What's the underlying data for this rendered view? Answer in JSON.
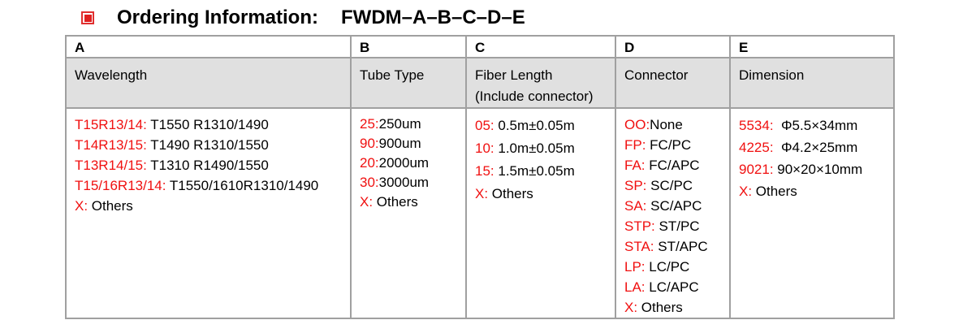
{
  "title": {
    "label": "Ordering Information:",
    "code": "FWDM–A–B–C–D–E",
    "icon": "red-square-bullet-icon"
  },
  "colors": {
    "code": "#f01010",
    "header_bg": "#e0e0e0",
    "border": "#a0a0a0"
  },
  "columns": [
    {
      "letter": "A",
      "name": "Wavelength",
      "items": [
        {
          "code": "T15R13/14:",
          "value": " T1550 R1310/1490"
        },
        {
          "code": "T14R13/15:",
          "value": " T1490 R1310/1550"
        },
        {
          "code": "T13R14/15:",
          "value": " T1310 R1490/1550"
        },
        {
          "code": "T15/16R13/14:",
          "value": " T1550/1610R1310/1490"
        },
        {
          "code": "X:",
          "value": " Others"
        }
      ]
    },
    {
      "letter": "B",
      "name": "Tube Type",
      "items": [
        {
          "code": "25:",
          "value": "250um"
        },
        {
          "code": "90:",
          "value": "900um"
        },
        {
          "code": "20:",
          "value": "2000um"
        },
        {
          "code": "30:",
          "value": "3000um"
        },
        {
          "code": "X:",
          "value": " Others"
        }
      ]
    },
    {
      "letter": "C",
      "name": "Fiber Length",
      "name2": "(Include connector)",
      "items": [
        {
          "code": "05:",
          "value": " 0.5m±0.05m"
        },
        {
          "code": "10:",
          "value": " 1.0m±0.05m"
        },
        {
          "code": "15:",
          "value": " 1.5m±0.05m"
        },
        {
          "code": "X:",
          "value": " Others"
        }
      ]
    },
    {
      "letter": "D",
      "name": "Connector",
      "items": [
        {
          "code": "OO:",
          "value": "None"
        },
        {
          "code": "FP:",
          "value": " FC/PC"
        },
        {
          "code": "FA:",
          "value": " FC/APC"
        },
        {
          "code": "SP:",
          "value": " SC/PC"
        },
        {
          "code": "SA:",
          "value": " SC/APC"
        },
        {
          "code": "STP:",
          "value": " ST/PC"
        },
        {
          "code": "STA:",
          "value": " ST/APC"
        },
        {
          "code": "LP:",
          "value": " LC/PC"
        },
        {
          "code": "LA:",
          "value": " LC/APC"
        },
        {
          "code": "X:",
          "value": " Others"
        }
      ]
    },
    {
      "letter": "E",
      "name": "Dimension",
      "items": [
        {
          "code": "5534:",
          "value": "  Φ5.5×34mm"
        },
        {
          "code": "4225:",
          "value": "  Φ4.2×25mm"
        },
        {
          "code": "9021:",
          "value": " 90×20×10mm"
        },
        {
          "code": "X:",
          "value": " Others"
        }
      ]
    }
  ]
}
